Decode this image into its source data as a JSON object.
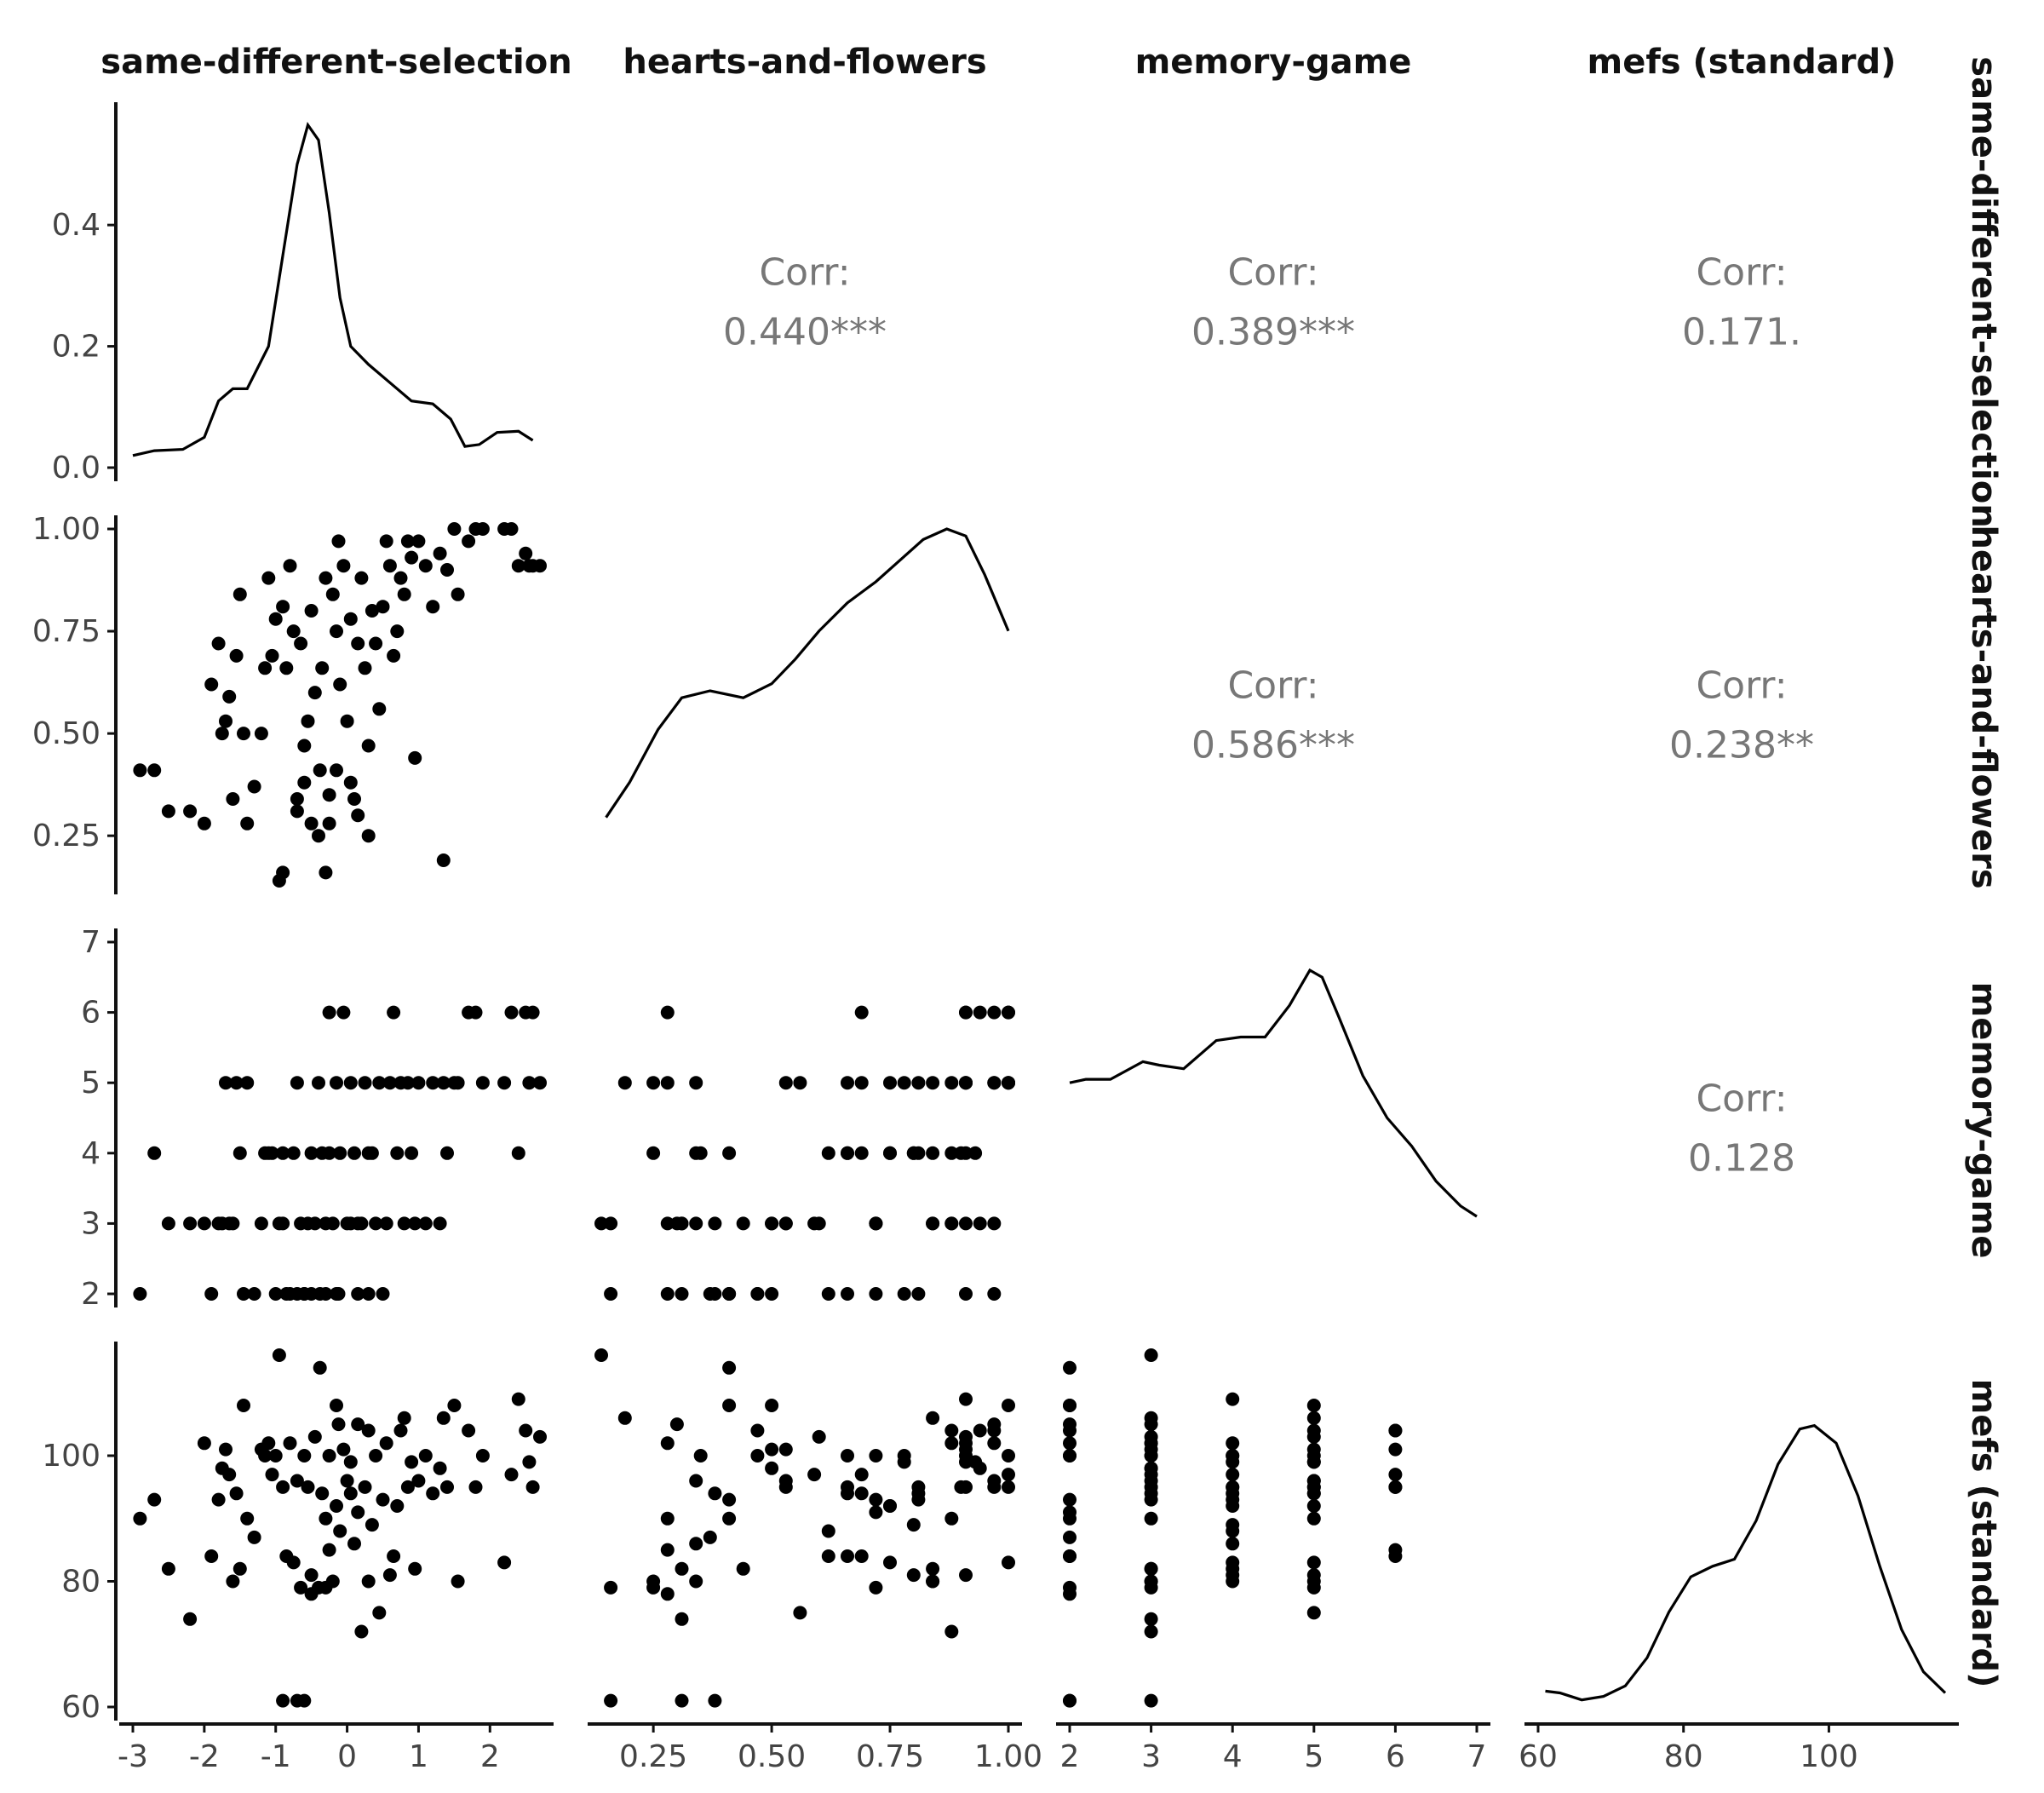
{
  "chart_data": {
    "type": "scatter",
    "variables": [
      "same-different-selection",
      "hearts-and-flowers",
      "memory-game",
      "mefs (standard)"
    ],
    "row_strip_labels": [
      "same-different-selection",
      "hearts-and-flowers",
      "memory-game",
      "mefs (standard)"
    ],
    "ranges": [
      [
        -3.0,
        2.7
      ],
      [
        0.14,
        1.0
      ],
      [
        2,
        7
      ],
      [
        60,
        116
      ]
    ],
    "ticks": [
      [
        "-3",
        "-2",
        "-1",
        "0",
        "1",
        "2"
      ],
      [
        "0.25",
        "0.50",
        "0.75",
        "1.00"
      ],
      [
        "2",
        "3",
        "4",
        "5",
        "6",
        "7"
      ],
      [
        "60",
        "80",
        "100"
      ]
    ],
    "tick_values": [
      [
        -3,
        -2,
        -1,
        0,
        1,
        2
      ],
      [
        0.25,
        0.5,
        0.75,
        1.0
      ],
      [
        2,
        3,
        4,
        5,
        6,
        7
      ],
      [
        60,
        80,
        100
      ]
    ],
    "density_axis_ticks": [
      "0.0",
      "0.2",
      "0.4"
    ],
    "density_axis_values": [
      0.0,
      0.2,
      0.4
    ],
    "density_max": 0.58,
    "correlations": [
      {
        "row": 0,
        "col": 1,
        "label": "Corr:",
        "value": "0.440***"
      },
      {
        "row": 0,
        "col": 2,
        "label": "Corr:",
        "value": "0.389***"
      },
      {
        "row": 0,
        "col": 3,
        "label": "Corr:",
        "value": "0.171."
      },
      {
        "row": 1,
        "col": 2,
        "label": "Corr:",
        "value": "0.586***"
      },
      {
        "row": 1,
        "col": 3,
        "label": "Corr:",
        "value": "0.238**"
      },
      {
        "row": 2,
        "col": 3,
        "label": "Corr:",
        "value": "0.128"
      }
    ],
    "densities": [
      [
        [
          -3.0,
          0.02
        ],
        [
          -2.7,
          0.028
        ],
        [
          -2.3,
          0.03
        ],
        [
          -2.0,
          0.05
        ],
        [
          -1.8,
          0.11
        ],
        [
          -1.6,
          0.13
        ],
        [
          -1.4,
          0.13
        ],
        [
          -1.1,
          0.2
        ],
        [
          -0.9,
          0.35
        ],
        [
          -0.7,
          0.5
        ],
        [
          -0.55,
          0.565
        ],
        [
          -0.4,
          0.54
        ],
        [
          -0.25,
          0.42
        ],
        [
          -0.1,
          0.28
        ],
        [
          0.05,
          0.2
        ],
        [
          0.3,
          0.17
        ],
        [
          0.6,
          0.14
        ],
        [
          0.9,
          0.11
        ],
        [
          1.2,
          0.105
        ],
        [
          1.45,
          0.08
        ],
        [
          1.65,
          0.035
        ],
        [
          1.85,
          0.038
        ],
        [
          2.1,
          0.058
        ],
        [
          2.4,
          0.06
        ],
        [
          2.6,
          0.045
        ]
      ],
      [
        [
          0.15,
          0.18
        ],
        [
          0.2,
          0.28
        ],
        [
          0.26,
          0.43
        ],
        [
          0.31,
          0.52
        ],
        [
          0.37,
          0.54
        ],
        [
          0.44,
          0.52
        ],
        [
          0.5,
          0.56
        ],
        [
          0.55,
          0.63
        ],
        [
          0.6,
          0.71
        ],
        [
          0.66,
          0.79
        ],
        [
          0.72,
          0.85
        ],
        [
          0.77,
          0.91
        ],
        [
          0.82,
          0.97
        ],
        [
          0.87,
          1.0
        ],
        [
          0.91,
          0.98
        ],
        [
          0.95,
          0.87
        ],
        [
          1.0,
          0.71
        ]
      ],
      [
        [
          2.0,
          0.6
        ],
        [
          2.2,
          0.61
        ],
        [
          2.5,
          0.61
        ],
        [
          2.9,
          0.66
        ],
        [
          3.1,
          0.65
        ],
        [
          3.4,
          0.64
        ],
        [
          3.8,
          0.72
        ],
        [
          4.1,
          0.73
        ],
        [
          4.4,
          0.73
        ],
        [
          4.7,
          0.82
        ],
        [
          4.95,
          0.92
        ],
        [
          5.1,
          0.9
        ],
        [
          5.3,
          0.79
        ],
        [
          5.6,
          0.62
        ],
        [
          5.9,
          0.5
        ],
        [
          6.2,
          0.42
        ],
        [
          6.5,
          0.32
        ],
        [
          6.8,
          0.25
        ],
        [
          7.0,
          0.22
        ]
      ],
      [
        [
          61,
          0.045
        ],
        [
          63,
          0.04
        ],
        [
          66,
          0.02
        ],
        [
          69,
          0.03
        ],
        [
          72,
          0.06
        ],
        [
          75,
          0.14
        ],
        [
          78,
          0.27
        ],
        [
          81,
          0.37
        ],
        [
          84,
          0.4
        ],
        [
          87,
          0.42
        ],
        [
          90,
          0.53
        ],
        [
          93,
          0.69
        ],
        [
          96,
          0.79
        ],
        [
          98,
          0.8
        ],
        [
          101,
          0.75
        ],
        [
          104,
          0.6
        ],
        [
          107,
          0.4
        ],
        [
          110,
          0.22
        ],
        [
          113,
          0.1
        ],
        [
          116,
          0.04
        ]
      ]
    ],
    "points": [
      [
        -2.9,
        0.41,
        2,
        90
      ],
      [
        -2.7,
        0.41,
        4,
        93
      ],
      [
        -2.5,
        0.31,
        3,
        82
      ],
      [
        -2.2,
        0.31,
        3,
        74
      ],
      [
        -2.0,
        0.28,
        3,
        102
      ],
      [
        -1.9,
        0.62,
        2,
        84
      ],
      [
        -1.8,
        0.72,
        3,
        93
      ],
      [
        -1.75,
        0.5,
        3,
        98
      ],
      [
        -1.7,
        0.53,
        5,
        101
      ],
      [
        -1.65,
        0.59,
        3,
        97
      ],
      [
        -1.6,
        0.34,
        3,
        80
      ],
      [
        -1.55,
        0.69,
        5,
        94
      ],
      [
        -1.5,
        0.84,
        4,
        82
      ],
      [
        -1.45,
        0.5,
        2,
        108
      ],
      [
        -1.4,
        0.28,
        5,
        90
      ],
      [
        -1.3,
        0.37,
        2,
        87
      ],
      [
        -1.2,
        0.5,
        3,
        101
      ],
      [
        -1.15,
        0.66,
        4,
        100
      ],
      [
        -1.1,
        0.88,
        4,
        102
      ],
      [
        -1.05,
        0.69,
        4,
        97
      ],
      [
        -1.0,
        0.78,
        2,
        100
      ],
      [
        -0.95,
        0.14,
        3,
        116
      ],
      [
        -0.9,
        0.81,
        4,
        95
      ],
      [
        -0.85,
        0.66,
        2,
        84
      ],
      [
        -0.8,
        0.91,
        2,
        102
      ],
      [
        -0.75,
        0.75,
        4,
        83
      ],
      [
        -0.7,
        0.34,
        5,
        96
      ],
      [
        -0.65,
        0.72,
        3,
        79
      ],
      [
        -0.6,
        0.47,
        2,
        100
      ],
      [
        -0.55,
        0.53,
        3,
        95
      ],
      [
        -0.5,
        0.8,
        4,
        81
      ],
      [
        -0.45,
        0.6,
        3,
        103
      ],
      [
        -0.4,
        0.25,
        5,
        79
      ],
      [
        -0.38,
        0.41,
        2,
        114
      ],
      [
        -0.35,
        0.66,
        4,
        94
      ],
      [
        -0.3,
        0.88,
        3,
        90
      ],
      [
        -0.25,
        0.28,
        6,
        85
      ],
      [
        -0.2,
        0.84,
        3,
        80
      ],
      [
        -0.15,
        0.75,
        5,
        92
      ],
      [
        -0.12,
        0.97,
        2,
        105
      ],
      [
        -0.1,
        0.62,
        4,
        88
      ],
      [
        -0.05,
        0.91,
        6,
        101
      ],
      [
        0.0,
        0.53,
        3,
        96
      ],
      [
        0.05,
        0.78,
        5,
        99
      ],
      [
        0.1,
        0.34,
        4,
        86
      ],
      [
        0.15,
        0.72,
        2,
        91
      ],
      [
        0.2,
        0.88,
        3,
        72
      ],
      [
        0.25,
        0.66,
        5,
        95
      ],
      [
        0.3,
        0.47,
        2,
        104
      ],
      [
        0.35,
        0.8,
        4,
        89
      ],
      [
        0.4,
        0.72,
        3,
        100
      ],
      [
        0.45,
        0.56,
        5,
        75
      ],
      [
        0.5,
        0.81,
        2,
        93
      ],
      [
        0.55,
        0.97,
        3,
        102
      ],
      [
        0.6,
        0.91,
        5,
        81
      ],
      [
        0.65,
        0.69,
        6,
        84
      ],
      [
        0.7,
        0.75,
        4,
        92
      ],
      [
        0.75,
        0.88,
        5,
        104
      ],
      [
        0.8,
        0.84,
        3,
        106
      ],
      [
        0.85,
        0.97,
        5,
        95
      ],
      [
        0.9,
        0.93,
        4,
        99
      ],
      [
        0.95,
        0.44,
        3,
        82
      ],
      [
        1.0,
        0.97,
        5,
        96
      ],
      [
        1.1,
        0.91,
        3,
        100
      ],
      [
        1.2,
        0.81,
        5,
        94
      ],
      [
        1.3,
        0.94,
        3,
        98
      ],
      [
        1.35,
        0.19,
        5,
        106
      ],
      [
        1.4,
        0.9,
        4,
        95
      ],
      [
        1.5,
        1.0,
        5,
        108
      ],
      [
        1.55,
        0.84,
        5,
        80
      ],
      [
        1.7,
        0.97,
        6,
        104
      ],
      [
        1.8,
        1.0,
        6,
        95
      ],
      [
        1.9,
        1.0,
        5,
        100
      ],
      [
        2.2,
        1.0,
        5,
        83
      ],
      [
        2.3,
        1.0,
        6,
        97
      ],
      [
        2.4,
        0.91,
        4,
        109
      ],
      [
        2.5,
        0.94,
        6,
        104
      ],
      [
        2.55,
        0.91,
        5,
        99
      ],
      [
        2.6,
        0.91,
        6,
        95
      ],
      [
        2.7,
        0.91,
        5,
        103
      ],
      [
        -0.9,
        0.16,
        3,
        61
      ],
      [
        -0.7,
        0.31,
        2,
        61
      ],
      [
        -0.6,
        0.38,
        2,
        61
      ],
      [
        -0.3,
        0.16,
        2,
        79
      ],
      [
        0.3,
        0.25,
        4,
        80
      ],
      [
        -0.5,
        0.28,
        2,
        78
      ],
      [
        0.15,
        0.3,
        3,
        105
      ],
      [
        -0.15,
        0.41,
        2,
        108
      ],
      [
        -0.25,
        0.35,
        4,
        100
      ],
      [
        0.05,
        0.38,
        3,
        94
      ]
    ]
  }
}
